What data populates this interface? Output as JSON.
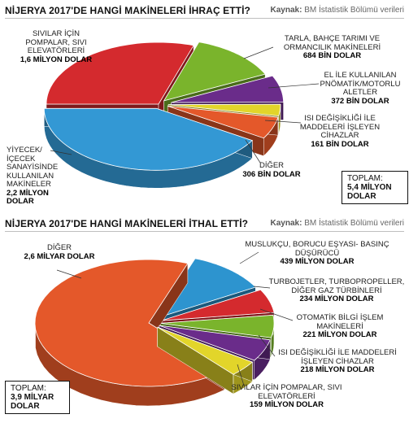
{
  "charts": [
    {
      "title": "NİJERYA 2017'DE HANGİ MAKİNELERİ İHRAÇ ETTİ?",
      "source_label": "Kaynak:",
      "source_text": "BM İstatistik Bölümü verileri",
      "total_label": "TOPLAM:",
      "total_value": "5,4 MİLYON DOLAR",
      "slices": [
        {
          "label": "SIVILAR İÇİN POMPALAR, SIVI ELEVATÖRLERİ",
          "value_text": "1,6 MİLYON DOLAR",
          "value": 1.6,
          "color": "#d42a2e"
        },
        {
          "label": "TARLA, BAHÇE TARIMI VE ORMANCILIK MAKİNELERİ",
          "value_text": "684 BİN DOLAR",
          "value": 0.684,
          "color": "#7ab42c"
        },
        {
          "label": "EL İLE KULLANILAN PNÖMATİK/MOTORLU ALETLER",
          "value_text": "372 BİN DOLAR",
          "value": 0.372,
          "color": "#6a2c8a"
        },
        {
          "label": "ISI DEĞİŞİKLİĞİ İLE MADDELERİ İŞLEYEN CİHAZLAR",
          "value_text": "161 BİN DOLAR",
          "value": 0.161,
          "color": "#e2d52a"
        },
        {
          "label": "DİĞER",
          "value_text": "306 BİN DOLAR",
          "value": 0.306,
          "color": "#e4582a"
        },
        {
          "label": "YİYECEK/ İÇECEK SANAYİSİNDE KULLANILAN MAKİNELER",
          "value_text": "2,2 MİLYON DOLAR",
          "value": 2.2,
          "color": "#3398d4"
        }
      ]
    },
    {
      "title": "NİJERYA 2017'DE HANGİ MAKİNELERİ İTHAL ETTİ?",
      "source_label": "Kaynak:",
      "source_text": "BM İstatistik Bölümü verileri",
      "total_label": "TOPLAM:",
      "total_value": "3,9 MİLYAR DOLAR",
      "slices": [
        {
          "label": "MUSLUKÇU, BORUCU EŞYASI- BASINÇ DÜŞÜRÜCÜ",
          "value_text": "439 MİLYON DOLAR",
          "value": 439,
          "color": "#2d94cf"
        },
        {
          "label": "TURBOJETLER, TURBOPROPELLER, DİĞER GAZ TÜRBİNLERİ",
          "value_text": "234 MİLYON DOLAR",
          "value": 234,
          "color": "#d42a2e"
        },
        {
          "label": "OTOMATİK BİLGİ İŞLEM MAKİNELERİ",
          "value_text": "221 MİLYON DOLAR",
          "value": 221,
          "color": "#7ab42c"
        },
        {
          "label": "ISI DEĞİŞİKLİĞİ İLE MADDELERİ İŞLEYEN CİHAZLAR",
          "value_text": "218 MİLYON DOLAR",
          "value": 218,
          "color": "#6a2c8a"
        },
        {
          "label": "SIVILAR İÇİN POMPALAR, SIVI ELEVATÖRLERİ",
          "value_text": "159 MİLYON DOLAR",
          "value": 159,
          "color": "#e2d52a"
        },
        {
          "label": "DİĞER",
          "value_text": "2,6 MİLYAR DOLAR",
          "value": 2600,
          "color": "#e4582a"
        }
      ]
    }
  ],
  "chart_data": [
    {
      "type": "pie",
      "title": "NİJERYA 2017'DE HANGİ MAKİNELERİ İHRAÇ ETTİ?",
      "categories": [
        "SIVILAR İÇİN POMPALAR, SIVI ELEVATÖRLERİ",
        "TARLA, BAHÇE TARIMI VE ORMANCILIK MAKİNELERİ",
        "EL İLE KULLANILAN PNÖMATİK/MOTORLU ALETLER",
        "ISI DEĞİŞİKLİĞİ İLE MADDELERİ İŞLEYEN CİHAZLAR",
        "DİĞER",
        "YİYECEK/ İÇECEK SANAYİSİNDE KULLANILAN MAKİNELER"
      ],
      "values": [
        1600000,
        684000,
        372000,
        161000,
        306000,
        2200000
      ],
      "unit": "DOLAR",
      "total": "5,4 MİLYON DOLAR"
    },
    {
      "type": "pie",
      "title": "NİJERYA 2017'DE HANGİ MAKİNELERİ İTHAL ETTİ?",
      "categories": [
        "MUSLUKÇU, BORUCU EŞYASI- BASINÇ DÜŞÜRÜCÜ",
        "TURBOJETLER, TURBOPROPELLER, DİĞER GAZ TÜRBİNLERİ",
        "OTOMATİK BİLGİ İŞLEM MAKİNELERİ",
        "ISI DEĞİŞİKLİĞİ İLE MADDELERİ İŞLEYEN CİHAZLAR",
        "SIVILAR İÇİN POMPALAR, SIVI ELEVATÖRLERİ",
        "DİĞER"
      ],
      "values": [
        439000000,
        234000000,
        221000000,
        218000000,
        159000000,
        2600000000
      ],
      "unit": "DOLAR",
      "total": "3,9 MİLYAR DOLAR"
    }
  ]
}
